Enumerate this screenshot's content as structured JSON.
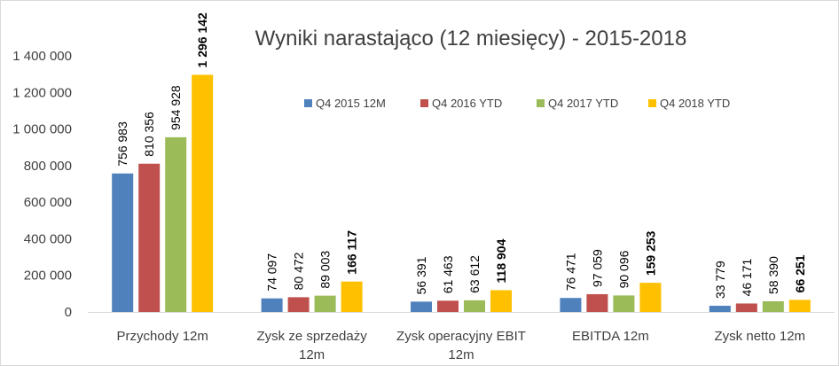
{
  "chart_data": {
    "type": "bar",
    "title": "Wyniki narastająco (12 miesięcy) - 2015-2018",
    "categories": [
      [
        "Przychody 12m"
      ],
      [
        "Zysk ze sprzedaży",
        "12m"
      ],
      [
        "Zysk operacyjny EBIT",
        "12m"
      ],
      [
        "EBITDA 12m"
      ],
      [
        "Zysk netto 12m"
      ]
    ],
    "series": [
      {
        "name": "Q4 2015 12M",
        "color": "#4f81bd",
        "values": [
          756983,
          74097,
          56391,
          76471,
          33779
        ],
        "labels": [
          "756 983",
          "74 097",
          "56 391",
          "76 471",
          "33 779"
        ]
      },
      {
        "name": "Q4 2016 YTD",
        "color": "#c0504d",
        "values": [
          810356,
          80472,
          61463,
          97059,
          46171
        ],
        "labels": [
          "810 356",
          "80 472",
          "61 463",
          "97 059",
          "46 171"
        ]
      },
      {
        "name": "Q4 2017 YTD",
        "color": "#9bbb59",
        "values": [
          954928,
          89003,
          63612,
          90096,
          58390
        ],
        "labels": [
          "954 928",
          "89 003",
          "63 612",
          "90 096",
          "58 390"
        ]
      },
      {
        "name": "Q4 2018 YTD",
        "color": "#ffc000",
        "values": [
          1296142,
          166117,
          118904,
          159253,
          66251
        ],
        "labels": [
          "1 296 142",
          "166 117",
          "118 904",
          "159 253",
          "66 251"
        ],
        "label_bold": true
      }
    ],
    "ylim": [
      0,
      1400000
    ],
    "yticks": [
      0,
      200000,
      400000,
      600000,
      800000,
      1000000,
      1200000,
      1400000
    ],
    "ytick_labels": [
      "0",
      "200 000",
      "400 000",
      "600 000",
      "800 000",
      "1 000 000",
      "1 200 000",
      "1 400 000"
    ],
    "grid": false,
    "legend_position": "top-right"
  }
}
